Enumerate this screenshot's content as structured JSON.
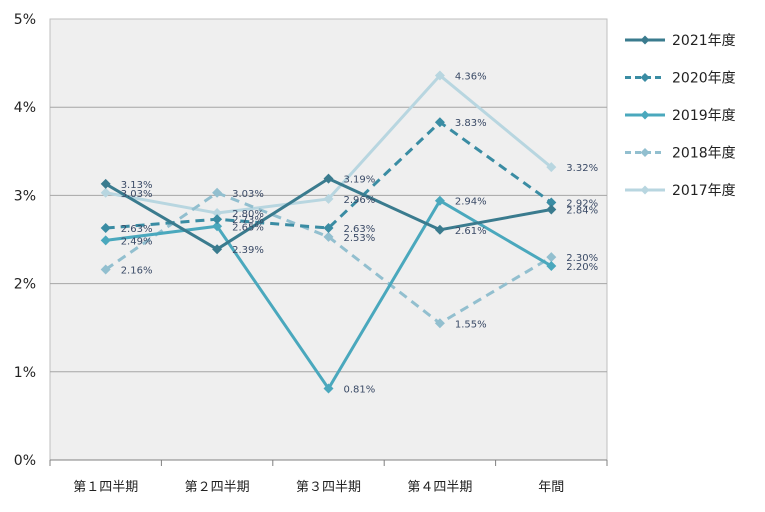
{
  "chart_data": {
    "type": "line",
    "title": "",
    "xlabel": "",
    "ylabel": "",
    "categories": [
      "第１四半期",
      "第２四半期",
      "第３四半期",
      "第４四半期",
      "年間"
    ],
    "ylim": [
      0,
      5
    ],
    "y_ticks": [
      "0%",
      "1%",
      "2%",
      "3%",
      "4%",
      "5%"
    ],
    "grid": true,
    "legend_position": "right",
    "series": [
      {
        "name": "2021年度",
        "values": [
          3.13,
          2.39,
          3.19,
          2.61,
          2.84
        ],
        "labels": [
          "3.13%",
          "2.39%",
          "3.19%",
          "2.61%",
          "2.84%"
        ],
        "color": "#3a7b8e",
        "dash": "solid",
        "width": 3
      },
      {
        "name": "2020年度",
        "values": [
          2.63,
          2.73,
          2.63,
          3.83,
          2.92
        ],
        "labels": [
          "2.63%",
          "2.73%",
          "2.63%",
          "3.83%",
          "2.92%"
        ],
        "color": "#3a8ca3",
        "dash": "dashed",
        "width": 3
      },
      {
        "name": "2019年度",
        "values": [
          2.49,
          2.65,
          0.81,
          2.94,
          2.2
        ],
        "labels": [
          "2.49%",
          "2.65%",
          "0.81%",
          "2.94%",
          "2.20%"
        ],
        "color": "#4aa8bd",
        "dash": "solid",
        "width": 3
      },
      {
        "name": "2018年度",
        "values": [
          2.16,
          3.03,
          2.53,
          1.55,
          2.3
        ],
        "labels": [
          "2.16%",
          "3.03%",
          "2.53%",
          "1.55%",
          "2.30%"
        ],
        "color": "#92bfcf",
        "dash": "dashed",
        "width": 3
      },
      {
        "name": "2017年度",
        "values": [
          3.03,
          2.8,
          2.96,
          4.36,
          3.32
        ],
        "labels": [
          "3.03%",
          "2.80%",
          "2.96%",
          "4.36%",
          "3.32%"
        ],
        "color": "#b8d6e0",
        "dash": "solid",
        "width": 3
      }
    ]
  }
}
